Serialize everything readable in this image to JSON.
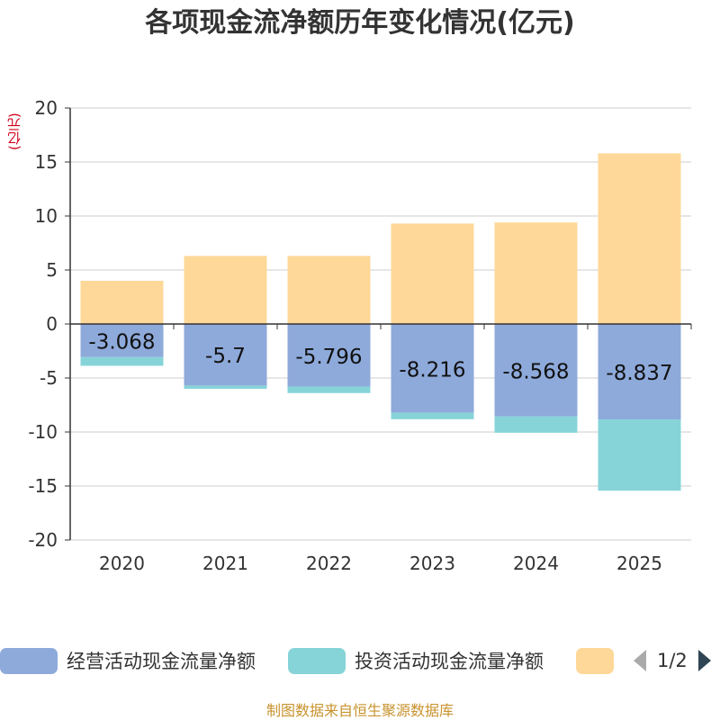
{
  "page": {
    "title": "各项现金流净额历年变化情况(亿元)",
    "unit_label": "(亿元)",
    "footer": "制图数据来自恒生聚源数据库"
  },
  "legend": {
    "items": [
      {
        "label": "经营活动现金流量净额",
        "color": "#8eaadb"
      },
      {
        "label": "投资活动现金流量净额",
        "color": "#86d4d8"
      },
      {
        "label": "",
        "color": "#fed898"
      }
    ],
    "pager": {
      "text": "1/2",
      "prev_icon": "triangle-left-icon",
      "next_icon": "triangle-right-icon",
      "prev_color": "#aaaaaa",
      "next_color": "#2f4554"
    }
  },
  "chart_data": {
    "type": "bar",
    "stacked": true,
    "categories": [
      "2020",
      "2021",
      "2022",
      "2023",
      "2024",
      "2025"
    ],
    "series": [
      {
        "name": "经营活动现金流量净额",
        "color": "#8eaadb",
        "values": [
          -3.068,
          -5.7,
          -5.796,
          -8.216,
          -8.568,
          -8.837
        ],
        "labels": [
          "-3.068",
          "-5.7",
          "-5.796",
          "-8.216",
          "-8.568",
          "-8.837"
        ]
      },
      {
        "name": "投资活动现金流量净额",
        "color": "#86d4d8",
        "values": [
          -0.8,
          -0.3,
          -0.6,
          -0.6,
          -1.5,
          -6.6
        ]
      },
      {
        "name": "",
        "color": "#fed898",
        "values": [
          4.0,
          6.3,
          6.3,
          9.3,
          9.4,
          15.8
        ]
      }
    ],
    "ylim": [
      -20,
      20
    ],
    "yticks": [
      -20,
      -15,
      -10,
      -5,
      0,
      5,
      10,
      15,
      20
    ],
    "ylabel": "(亿元)",
    "grid": true
  }
}
